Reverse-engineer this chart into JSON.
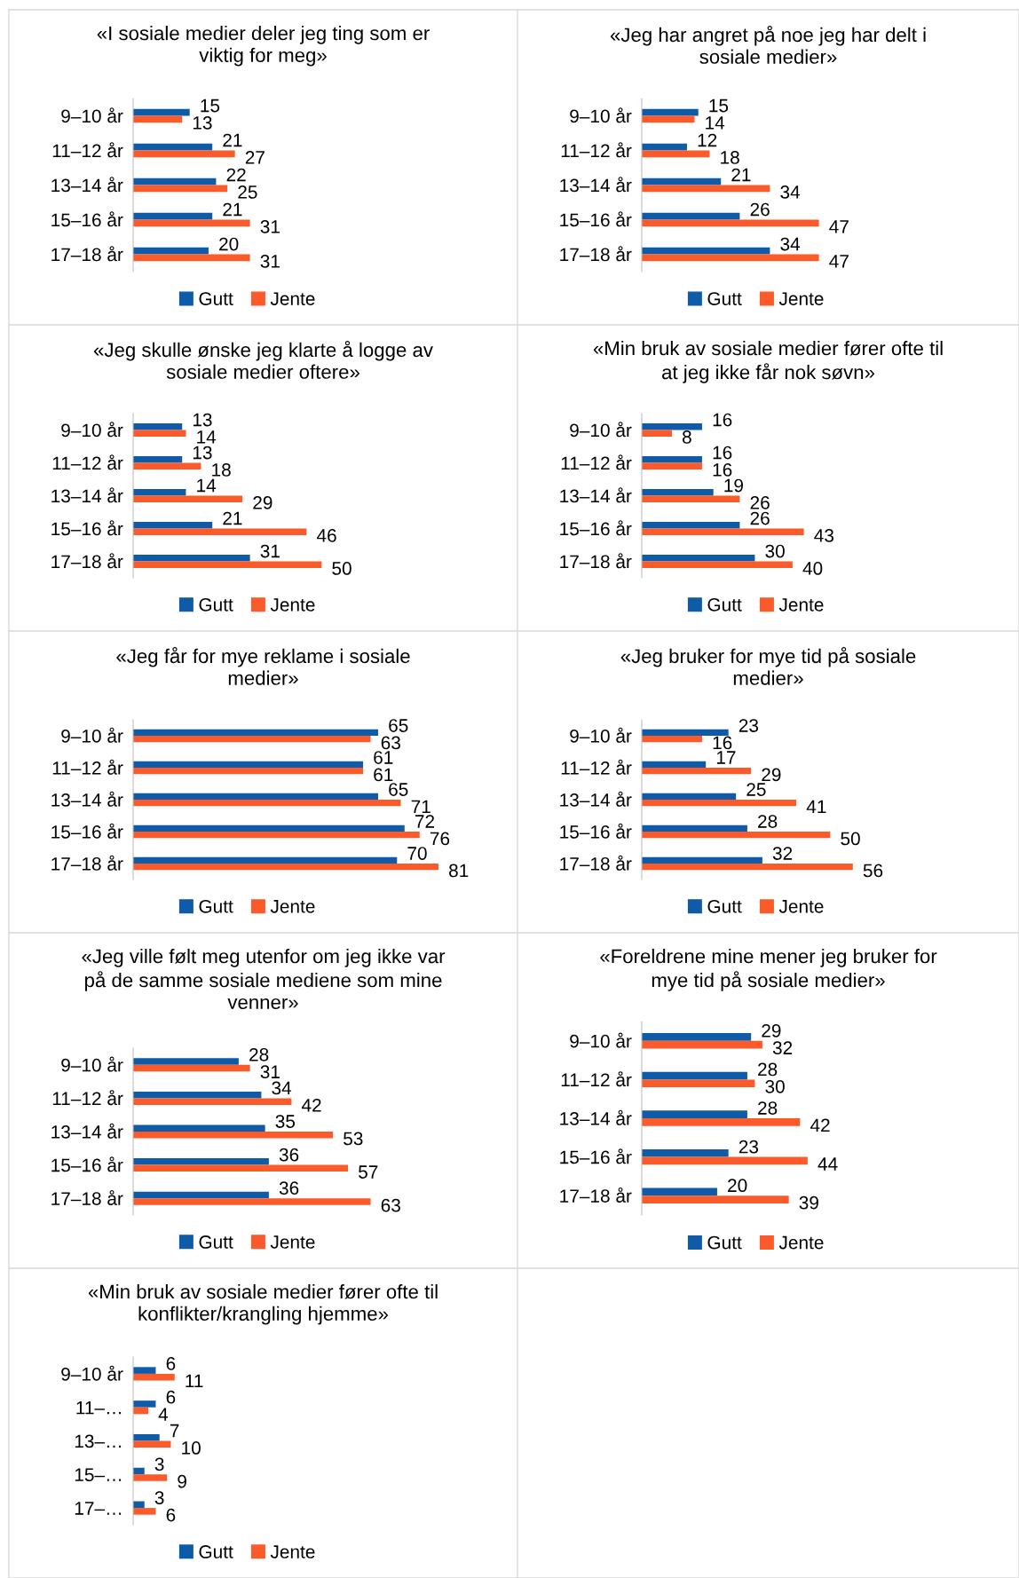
{
  "chart_data": [
    {
      "type": "bar",
      "orientation": "horizontal",
      "title": "«I sosiale medier deler jeg ting som er\nviktig for meg»",
      "categories": [
        "9–10 år",
        "11–12 år",
        "13–14 år",
        "15–16 år",
        "17–18 år"
      ],
      "data_labels": true,
      "legend": "bottom",
      "series": [
        {
          "name": "Gutt",
          "color": "#0f5ba7",
          "values": [
            15,
            21,
            22,
            21,
            20
          ]
        },
        {
          "name": "Jente",
          "color": "#fb5a2a",
          "values": [
            13,
            27,
            25,
            31,
            31
          ]
        }
      ]
    },
    {
      "type": "bar",
      "orientation": "horizontal",
      "title": "«Jeg har angret på noe jeg har delt i\nsosiale medier»",
      "categories": [
        "9–10 år",
        "11–12 år",
        "13–14 år",
        "15–16 år",
        "17–18 år"
      ],
      "data_labels": true,
      "legend": "bottom",
      "series": [
        {
          "name": "Gutt",
          "color": "#0f5ba7",
          "values": [
            15,
            12,
            21,
            26,
            34
          ]
        },
        {
          "name": "Jente",
          "color": "#fb5a2a",
          "values": [
            14,
            18,
            34,
            47,
            47
          ]
        }
      ]
    },
    {
      "type": "bar",
      "orientation": "horizontal",
      "title": "«Jeg skulle ønske jeg klarte å logge av\nsosiale medier oftere»",
      "categories": [
        "9–10 år",
        "11–12 år",
        "13–14 år",
        "15–16 år",
        "17–18 år"
      ],
      "data_labels": true,
      "legend": "bottom",
      "series": [
        {
          "name": "Gutt",
          "color": "#0f5ba7",
          "values": [
            13,
            13,
            14,
            21,
            31
          ]
        },
        {
          "name": "Jente",
          "color": "#fb5a2a",
          "values": [
            14,
            18,
            29,
            46,
            50
          ]
        }
      ]
    },
    {
      "type": "bar",
      "orientation": "horizontal",
      "title": "«Min bruk av sosiale medier fører ofte til\nat jeg ikke får nok søvn»",
      "categories": [
        "9–10 år",
        "11–12 år",
        "13–14 år",
        "15–16 år",
        "17–18 år"
      ],
      "data_labels": true,
      "legend": "bottom",
      "series": [
        {
          "name": "Gutt",
          "color": "#0f5ba7",
          "values": [
            16,
            16,
            19,
            26,
            30
          ]
        },
        {
          "name": "Jente",
          "color": "#fb5a2a",
          "values": [
            8,
            16,
            26,
            43,
            40
          ]
        }
      ]
    },
    {
      "type": "bar",
      "orientation": "horizontal",
      "title": "«Jeg får for mye reklame i sosiale\nmedier»",
      "categories": [
        "9–10 år",
        "11–12 år",
        "13–14 år",
        "15–16 år",
        "17–18 år"
      ],
      "data_labels": true,
      "legend": "bottom",
      "series": [
        {
          "name": "Gutt",
          "color": "#0f5ba7",
          "values": [
            65,
            61,
            65,
            72,
            70
          ]
        },
        {
          "name": "Jente",
          "color": "#fb5a2a",
          "values": [
            63,
            61,
            71,
            76,
            81
          ]
        }
      ]
    },
    {
      "type": "bar",
      "orientation": "horizontal",
      "title": "«Jeg bruker for mye tid på sosiale\nmedier»",
      "categories": [
        "9–10 år",
        "11–12 år",
        "13–14 år",
        "15–16 år",
        "17–18 år"
      ],
      "data_labels": true,
      "legend": "bottom",
      "series": [
        {
          "name": "Gutt",
          "color": "#0f5ba7",
          "values": [
            23,
            17,
            25,
            28,
            32
          ]
        },
        {
          "name": "Jente",
          "color": "#fb5a2a",
          "values": [
            16,
            29,
            41,
            50,
            56
          ]
        }
      ]
    },
    {
      "type": "bar",
      "orientation": "horizontal",
      "title": "«Jeg ville følt meg utenfor om jeg ikke var\npå de samme sosiale mediene som mine\nvenner»",
      "categories": [
        "9–10 år",
        "11–12 år",
        "13–14 år",
        "15–16 år",
        "17–18 år"
      ],
      "data_labels": true,
      "legend": "bottom",
      "series": [
        {
          "name": "Gutt",
          "color": "#0f5ba7",
          "values": [
            28,
            34,
            35,
            36,
            36
          ]
        },
        {
          "name": "Jente",
          "color": "#fb5a2a",
          "values": [
            31,
            42,
            53,
            57,
            63
          ]
        }
      ]
    },
    {
      "type": "bar",
      "orientation": "horizontal",
      "title": "«Foreldrene mine mener jeg bruker for\nmye tid på sosiale medier»",
      "categories": [
        "9–10 år",
        "11–12 år",
        "13–14 år",
        "15–16 år",
        "17–18 år"
      ],
      "data_labels": true,
      "legend": "bottom",
      "series": [
        {
          "name": "Gutt",
          "color": "#0f5ba7",
          "values": [
            29,
            28,
            28,
            23,
            20
          ]
        },
        {
          "name": "Jente",
          "color": "#fb5a2a",
          "values": [
            32,
            30,
            42,
            44,
            39
          ]
        }
      ]
    },
    {
      "type": "bar",
      "orientation": "horizontal",
      "title": "«Min bruk av sosiale medier fører ofte til\nkonflikter/krangling hjemme»",
      "categories": [
        "9–10 år",
        "11–…",
        "13–…",
        "15–…",
        "17–…"
      ],
      "data_labels": true,
      "legend": "bottom",
      "series": [
        {
          "name": "Gutt",
          "color": "#0f5ba7",
          "values": [
            6,
            6,
            7,
            3,
            3
          ]
        },
        {
          "name": "Jente",
          "color": "#fb5a2a",
          "values": [
            11,
            4,
            10,
            9,
            6
          ]
        }
      ]
    }
  ]
}
